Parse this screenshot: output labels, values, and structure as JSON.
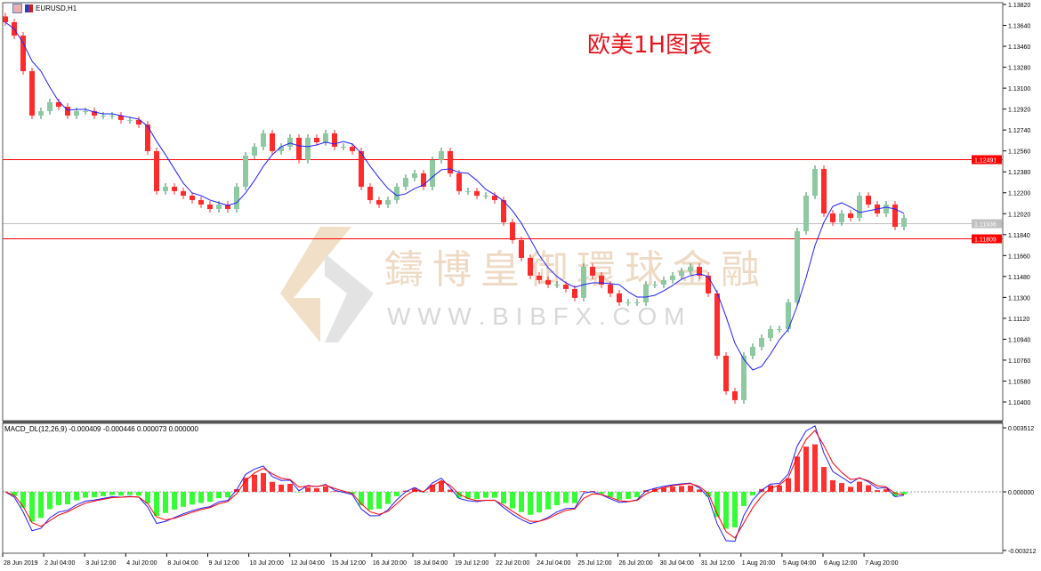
{
  "window": {
    "symbol_label": "EURUSD,H1"
  },
  "overlay_title": "欧美1H图表",
  "watermark": {
    "name": "鑄博皇御環球金融",
    "url": "W W W . B I B F X . C O M"
  },
  "colors": {
    "bull": "#8fc9a2",
    "bull_dark": "#2e8b57",
    "bear": "#ff2a2a",
    "ma": "#1f1fff",
    "level_line": "#ff0000",
    "bid_line": "#c0c0c0",
    "macd_pos": "#ff3030",
    "macd_neg": "#33ff33",
    "macd_line": "#1f1fff",
    "signal_line": "#ff0000"
  },
  "chart_data": [
    {
      "type": "candlestick",
      "symbol": "EURUSD",
      "timeframe": "H1",
      "ylim": [
        1.1036,
        1.1385
      ],
      "y_ticks": [
        "1.13820",
        "1.13640",
        "1.13460",
        "1.13280",
        "1.13100",
        "1.12920",
        "1.12740",
        "1.12560",
        "1.12380",
        "1.12200",
        "1.12020",
        "1.11840",
        "1.11660",
        "1.11480",
        "1.11300",
        "1.11120",
        "1.10940",
        "1.10760",
        "1.10580",
        "1.10400"
      ],
      "x_ticks": [
        "28 Jun 2019",
        "2 Jul 04:00",
        "3 Jul 12:00",
        "4 Jul 20:00",
        "8 Jul 04:00",
        "9 Jul 12:00",
        "10 Jul 20:00",
        "12 Jul 04:00",
        "15 Jul 12:00",
        "16 Jul 20:00",
        "18 Jul 04:00",
        "19 Jul 12:00",
        "22 Jul 20:00",
        "24 Jul 04:00",
        "25 Jul 12:00",
        "26 Jul 20:00",
        "30 Jul 04:00",
        "31 Jul 12:00",
        "1 Aug 20:00",
        "5 Aug 04:00",
        "6 Aug 12:00",
        "7 Aug 20:00"
      ],
      "closes": [
        1.13667,
        1.13552,
        1.13246,
        1.12864,
        1.12902,
        1.12979,
        1.1294,
        1.12864,
        1.12902,
        1.12902,
        1.12864,
        1.12864,
        1.12864,
        1.12826,
        1.12826,
        1.12787,
        1.12558,
        1.12214,
        1.12252,
        1.12214,
        1.12175,
        1.12137,
        1.12099,
        1.1206,
        1.12099,
        1.1206,
        1.12252,
        1.1252,
        1.12596,
        1.12711,
        1.12558,
        1.12596,
        1.12673,
        1.12482,
        1.12673,
        1.12634,
        1.12711,
        1.12596,
        1.12596,
        1.12558,
        1.12252,
        1.12137,
        1.12099,
        1.12137,
        1.12252,
        1.12328,
        1.12367,
        1.12252,
        1.12482,
        1.12558,
        1.12367,
        1.12214,
        1.12214,
        1.12175,
        1.12175,
        1.12137,
        1.11946,
        1.11793,
        1.1164,
        1.11487,
        1.11449,
        1.1141,
        1.1141,
        1.11372,
        1.11296,
        1.11563,
        1.11487,
        1.1141,
        1.11334,
        1.11257,
        1.11257,
        1.11257,
        1.1141,
        1.1141,
        1.11449,
        1.11487,
        1.11525,
        1.11563,
        1.11487,
        1.11334,
        1.10798,
        1.10492,
        1.10416,
        1.10798,
        1.10874,
        1.10951,
        1.11027,
        1.11027,
        1.11257,
        1.11869,
        1.12175,
        1.12405,
        1.12022,
        1.11946,
        1.12022,
        1.11984,
        1.12175,
        1.12099,
        1.12022,
        1.12099,
        1.11907,
        1.11984
      ],
      "levels": [
        {
          "price": "1.12491",
          "color": "#ff0000"
        },
        {
          "price": "1.11809",
          "color": "#ff0000"
        },
        {
          "price": "1.11936",
          "color": "#c0c0c0",
          "role": "bid"
        }
      ]
    },
    {
      "type": "macd",
      "label": "MACD_DL(12,26,9) -0.000409 -0.000446 0.000073 0.000000",
      "params": [
        12,
        26,
        9
      ],
      "values": [
        -0.000409,
        -0.000446,
        7.3e-05,
        0.0
      ],
      "y_ticks": [
        "0.003512",
        "0.000000",
        "-0.003212"
      ],
      "ylim": [
        -0.003212,
        0.003512
      ]
    }
  ]
}
